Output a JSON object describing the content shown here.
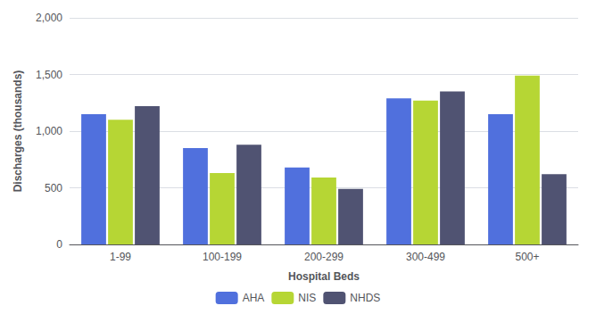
{
  "chart_data": {
    "type": "bar",
    "categories": [
      "1-99",
      "100-199",
      "200-299",
      "300-499",
      "500+"
    ],
    "series": [
      {
        "name": "AHA",
        "values": [
          1150,
          850,
          680,
          1290,
          1150
        ]
      },
      {
        "name": "NIS",
        "values": [
          1100,
          630,
          590,
          1270,
          1490
        ]
      },
      {
        "name": "NHDS",
        "values": [
          1220,
          880,
          490,
          1350,
          620
        ]
      }
    ],
    "xlabel": "Hospital Beds",
    "ylabel": "Discharges (thousands)",
    "ylim": [
      0,
      2000
    ],
    "yticks": [
      0,
      500,
      {
        "value": 1000,
        "label": "1,000"
      },
      {
        "value": 1500,
        "label": "1,500"
      },
      {
        "value": 2000,
        "label": "2,000"
      }
    ],
    "grid": true,
    "legend": "bottom"
  }
}
